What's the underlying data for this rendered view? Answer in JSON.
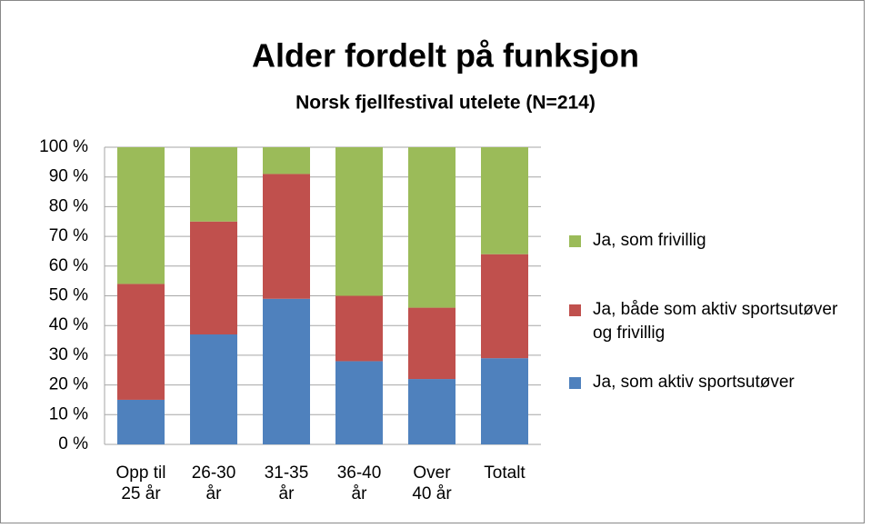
{
  "chart_data": {
    "type": "stacked_bar",
    "title": "Alder fordelt på funksjon",
    "subtitle": "Norsk fjellfestival utelete (N=214)",
    "categories": [
      "Opp til 25 år",
      "26-30 år",
      "31-35 år",
      "36-40 år",
      "Over 40 år",
      "Totalt"
    ],
    "series": [
      {
        "name": "Ja, som aktiv sportsutøver",
        "color": "#4f81bd",
        "values": [
          15,
          37,
          49,
          28,
          22,
          29
        ]
      },
      {
        "name": "Ja, både som aktiv sportsutøver og frivillig",
        "color": "#c0504d",
        "values": [
          39,
          38,
          42,
          22,
          24,
          35
        ]
      },
      {
        "name": "Ja, som frivillig",
        "color": "#9bbb59",
        "values": [
          46,
          25,
          9,
          50,
          54,
          36
        ]
      }
    ],
    "ylim": [
      0,
      100
    ],
    "yticks": [
      {
        "value": 0,
        "label": "0 %"
      },
      {
        "value": 10,
        "label": "10 %"
      },
      {
        "value": 20,
        "label": "20 %"
      },
      {
        "value": 30,
        "label": "30 %"
      },
      {
        "value": 40,
        "label": "40 %"
      },
      {
        "value": 50,
        "label": "50 %"
      },
      {
        "value": 60,
        "label": "60 %"
      },
      {
        "value": 70,
        "label": "70 %"
      },
      {
        "value": 80,
        "label": "80 %"
      },
      {
        "value": 90,
        "label": "90 %"
      },
      {
        "value": 100,
        "label": "100 %"
      }
    ],
    "grid": true,
    "legend": "right"
  }
}
